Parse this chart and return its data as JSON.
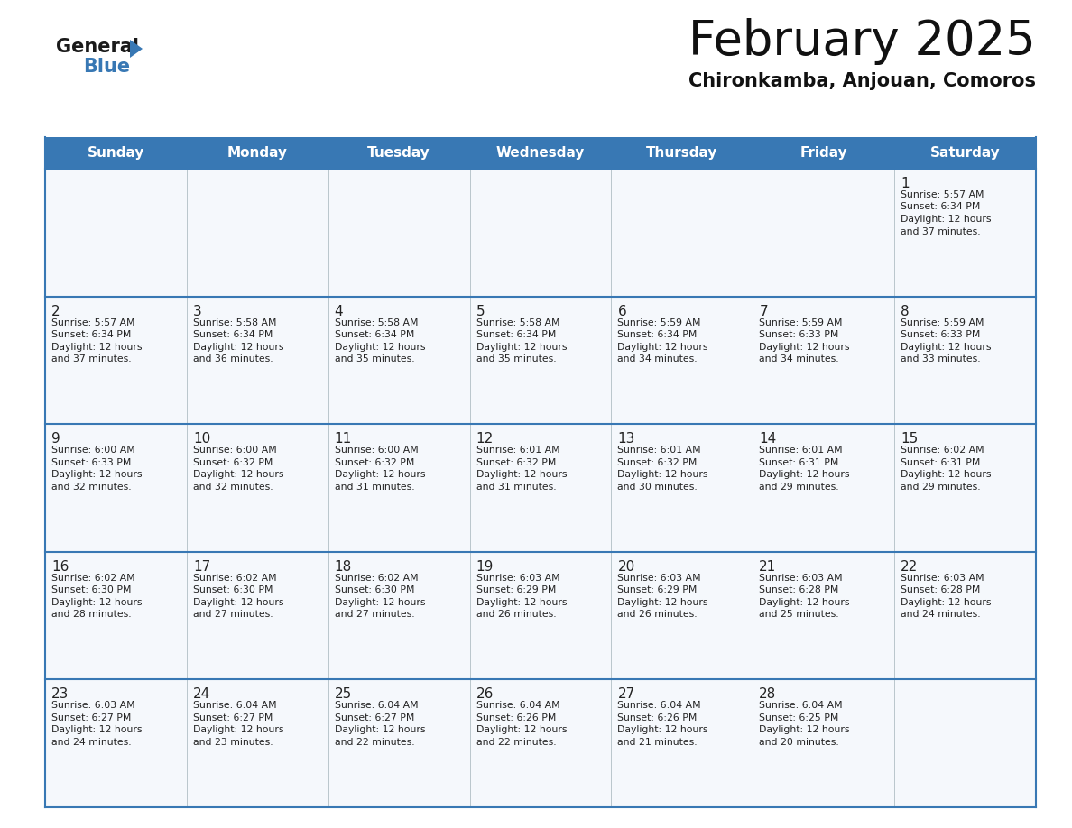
{
  "title": "February 2025",
  "subtitle": "Chironkamba, Anjouan, Comoros",
  "days_of_week": [
    "Sunday",
    "Monday",
    "Tuesday",
    "Wednesday",
    "Thursday",
    "Friday",
    "Saturday"
  ],
  "header_bg": "#3878b4",
  "header_text": "#ffffff",
  "cell_bg": "#f5f8fc",
  "border_color": "#2a5a9f",
  "row_border_color": "#3878b4",
  "day_number_color": "#222222",
  "info_text_color": "#222222",
  "title_color": "#111111",
  "subtitle_color": "#111111",
  "calendar": [
    [
      null,
      null,
      null,
      null,
      null,
      null,
      {
        "day": 1,
        "sunrise": "5:57 AM",
        "sunset": "6:34 PM",
        "daylight": "12 hours and 37 minutes"
      }
    ],
    [
      {
        "day": 2,
        "sunrise": "5:57 AM",
        "sunset": "6:34 PM",
        "daylight": "12 hours and 37 minutes"
      },
      {
        "day": 3,
        "sunrise": "5:58 AM",
        "sunset": "6:34 PM",
        "daylight": "12 hours and 36 minutes"
      },
      {
        "day": 4,
        "sunrise": "5:58 AM",
        "sunset": "6:34 PM",
        "daylight": "12 hours and 35 minutes"
      },
      {
        "day": 5,
        "sunrise": "5:58 AM",
        "sunset": "6:34 PM",
        "daylight": "12 hours and 35 minutes"
      },
      {
        "day": 6,
        "sunrise": "5:59 AM",
        "sunset": "6:34 PM",
        "daylight": "12 hours and 34 minutes"
      },
      {
        "day": 7,
        "sunrise": "5:59 AM",
        "sunset": "6:33 PM",
        "daylight": "12 hours and 34 minutes"
      },
      {
        "day": 8,
        "sunrise": "5:59 AM",
        "sunset": "6:33 PM",
        "daylight": "12 hours and 33 minutes"
      }
    ],
    [
      {
        "day": 9,
        "sunrise": "6:00 AM",
        "sunset": "6:33 PM",
        "daylight": "12 hours and 32 minutes"
      },
      {
        "day": 10,
        "sunrise": "6:00 AM",
        "sunset": "6:32 PM",
        "daylight": "12 hours and 32 minutes"
      },
      {
        "day": 11,
        "sunrise": "6:00 AM",
        "sunset": "6:32 PM",
        "daylight": "12 hours and 31 minutes"
      },
      {
        "day": 12,
        "sunrise": "6:01 AM",
        "sunset": "6:32 PM",
        "daylight": "12 hours and 31 minutes"
      },
      {
        "day": 13,
        "sunrise": "6:01 AM",
        "sunset": "6:32 PM",
        "daylight": "12 hours and 30 minutes"
      },
      {
        "day": 14,
        "sunrise": "6:01 AM",
        "sunset": "6:31 PM",
        "daylight": "12 hours and 29 minutes"
      },
      {
        "day": 15,
        "sunrise": "6:02 AM",
        "sunset": "6:31 PM",
        "daylight": "12 hours and 29 minutes"
      }
    ],
    [
      {
        "day": 16,
        "sunrise": "6:02 AM",
        "sunset": "6:30 PM",
        "daylight": "12 hours and 28 minutes"
      },
      {
        "day": 17,
        "sunrise": "6:02 AM",
        "sunset": "6:30 PM",
        "daylight": "12 hours and 27 minutes"
      },
      {
        "day": 18,
        "sunrise": "6:02 AM",
        "sunset": "6:30 PM",
        "daylight": "12 hours and 27 minutes"
      },
      {
        "day": 19,
        "sunrise": "6:03 AM",
        "sunset": "6:29 PM",
        "daylight": "12 hours and 26 minutes"
      },
      {
        "day": 20,
        "sunrise": "6:03 AM",
        "sunset": "6:29 PM",
        "daylight": "12 hours and 26 minutes"
      },
      {
        "day": 21,
        "sunrise": "6:03 AM",
        "sunset": "6:28 PM",
        "daylight": "12 hours and 25 minutes"
      },
      {
        "day": 22,
        "sunrise": "6:03 AM",
        "sunset": "6:28 PM",
        "daylight": "12 hours and 24 minutes"
      }
    ],
    [
      {
        "day": 23,
        "sunrise": "6:03 AM",
        "sunset": "6:27 PM",
        "daylight": "12 hours and 24 minutes"
      },
      {
        "day": 24,
        "sunrise": "6:04 AM",
        "sunset": "6:27 PM",
        "daylight": "12 hours and 23 minutes"
      },
      {
        "day": 25,
        "sunrise": "6:04 AM",
        "sunset": "6:27 PM",
        "daylight": "12 hours and 22 minutes"
      },
      {
        "day": 26,
        "sunrise": "6:04 AM",
        "sunset": "6:26 PM",
        "daylight": "12 hours and 22 minutes"
      },
      {
        "day": 27,
        "sunrise": "6:04 AM",
        "sunset": "6:26 PM",
        "daylight": "12 hours and 21 minutes"
      },
      {
        "day": 28,
        "sunrise": "6:04 AM",
        "sunset": "6:25 PM",
        "daylight": "12 hours and 20 minutes"
      },
      null
    ]
  ]
}
